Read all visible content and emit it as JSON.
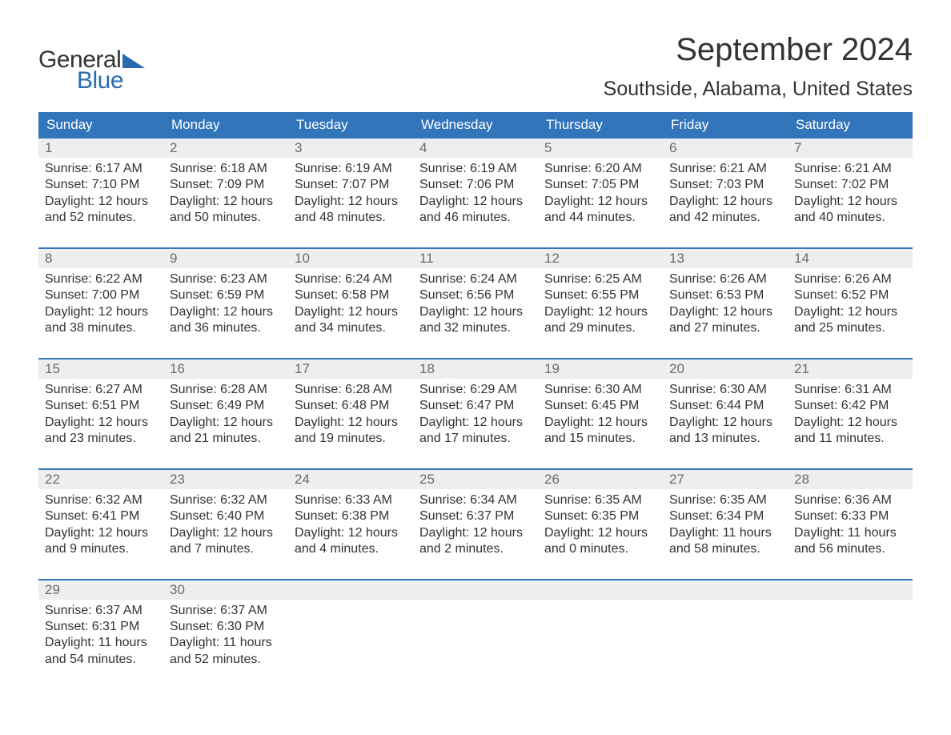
{
  "logo": {
    "text1": "General",
    "text2": "Blue"
  },
  "title": "September 2024",
  "location": "Southside, Alabama, United States",
  "colors": {
    "header_bg": "#3275bb",
    "header_text": "#ffffff",
    "daynum_bg": "#eeeeee",
    "daynum_text": "#6b6b6b",
    "body_text": "#333333",
    "page_bg": "#ffffff",
    "logo_blue": "#2a6bb0"
  },
  "typography": {
    "title_fontsize": 40,
    "location_fontsize": 25,
    "header_fontsize": 17,
    "daynum_fontsize": 17,
    "body_fontsize": 16,
    "logo_fontsize": 30
  },
  "layout": {
    "columns": 7,
    "rows": 5,
    "cell_border_color": "#3275bb"
  },
  "day_headers": [
    "Sunday",
    "Monday",
    "Tuesday",
    "Wednesday",
    "Thursday",
    "Friday",
    "Saturday"
  ],
  "weeks": [
    [
      {
        "n": "1",
        "sunrise": "Sunrise: 6:17 AM",
        "sunset": "Sunset: 7:10 PM",
        "dl1": "Daylight: 12 hours",
        "dl2": "and 52 minutes."
      },
      {
        "n": "2",
        "sunrise": "Sunrise: 6:18 AM",
        "sunset": "Sunset: 7:09 PM",
        "dl1": "Daylight: 12 hours",
        "dl2": "and 50 minutes."
      },
      {
        "n": "3",
        "sunrise": "Sunrise: 6:19 AM",
        "sunset": "Sunset: 7:07 PM",
        "dl1": "Daylight: 12 hours",
        "dl2": "and 48 minutes."
      },
      {
        "n": "4",
        "sunrise": "Sunrise: 6:19 AM",
        "sunset": "Sunset: 7:06 PM",
        "dl1": "Daylight: 12 hours",
        "dl2": "and 46 minutes."
      },
      {
        "n": "5",
        "sunrise": "Sunrise: 6:20 AM",
        "sunset": "Sunset: 7:05 PM",
        "dl1": "Daylight: 12 hours",
        "dl2": "and 44 minutes."
      },
      {
        "n": "6",
        "sunrise": "Sunrise: 6:21 AM",
        "sunset": "Sunset: 7:03 PM",
        "dl1": "Daylight: 12 hours",
        "dl2": "and 42 minutes."
      },
      {
        "n": "7",
        "sunrise": "Sunrise: 6:21 AM",
        "sunset": "Sunset: 7:02 PM",
        "dl1": "Daylight: 12 hours",
        "dl2": "and 40 minutes."
      }
    ],
    [
      {
        "n": "8",
        "sunrise": "Sunrise: 6:22 AM",
        "sunset": "Sunset: 7:00 PM",
        "dl1": "Daylight: 12 hours",
        "dl2": "and 38 minutes."
      },
      {
        "n": "9",
        "sunrise": "Sunrise: 6:23 AM",
        "sunset": "Sunset: 6:59 PM",
        "dl1": "Daylight: 12 hours",
        "dl2": "and 36 minutes."
      },
      {
        "n": "10",
        "sunrise": "Sunrise: 6:24 AM",
        "sunset": "Sunset: 6:58 PM",
        "dl1": "Daylight: 12 hours",
        "dl2": "and 34 minutes."
      },
      {
        "n": "11",
        "sunrise": "Sunrise: 6:24 AM",
        "sunset": "Sunset: 6:56 PM",
        "dl1": "Daylight: 12 hours",
        "dl2": "and 32 minutes."
      },
      {
        "n": "12",
        "sunrise": "Sunrise: 6:25 AM",
        "sunset": "Sunset: 6:55 PM",
        "dl1": "Daylight: 12 hours",
        "dl2": "and 29 minutes."
      },
      {
        "n": "13",
        "sunrise": "Sunrise: 6:26 AM",
        "sunset": "Sunset: 6:53 PM",
        "dl1": "Daylight: 12 hours",
        "dl2": "and 27 minutes."
      },
      {
        "n": "14",
        "sunrise": "Sunrise: 6:26 AM",
        "sunset": "Sunset: 6:52 PM",
        "dl1": "Daylight: 12 hours",
        "dl2": "and 25 minutes."
      }
    ],
    [
      {
        "n": "15",
        "sunrise": "Sunrise: 6:27 AM",
        "sunset": "Sunset: 6:51 PM",
        "dl1": "Daylight: 12 hours",
        "dl2": "and 23 minutes."
      },
      {
        "n": "16",
        "sunrise": "Sunrise: 6:28 AM",
        "sunset": "Sunset: 6:49 PM",
        "dl1": "Daylight: 12 hours",
        "dl2": "and 21 minutes."
      },
      {
        "n": "17",
        "sunrise": "Sunrise: 6:28 AM",
        "sunset": "Sunset: 6:48 PM",
        "dl1": "Daylight: 12 hours",
        "dl2": "and 19 minutes."
      },
      {
        "n": "18",
        "sunrise": "Sunrise: 6:29 AM",
        "sunset": "Sunset: 6:47 PM",
        "dl1": "Daylight: 12 hours",
        "dl2": "and 17 minutes."
      },
      {
        "n": "19",
        "sunrise": "Sunrise: 6:30 AM",
        "sunset": "Sunset: 6:45 PM",
        "dl1": "Daylight: 12 hours",
        "dl2": "and 15 minutes."
      },
      {
        "n": "20",
        "sunrise": "Sunrise: 6:30 AM",
        "sunset": "Sunset: 6:44 PM",
        "dl1": "Daylight: 12 hours",
        "dl2": "and 13 minutes."
      },
      {
        "n": "21",
        "sunrise": "Sunrise: 6:31 AM",
        "sunset": "Sunset: 6:42 PM",
        "dl1": "Daylight: 12 hours",
        "dl2": "and 11 minutes."
      }
    ],
    [
      {
        "n": "22",
        "sunrise": "Sunrise: 6:32 AM",
        "sunset": "Sunset: 6:41 PM",
        "dl1": "Daylight: 12 hours",
        "dl2": "and 9 minutes."
      },
      {
        "n": "23",
        "sunrise": "Sunrise: 6:32 AM",
        "sunset": "Sunset: 6:40 PM",
        "dl1": "Daylight: 12 hours",
        "dl2": "and 7 minutes."
      },
      {
        "n": "24",
        "sunrise": "Sunrise: 6:33 AM",
        "sunset": "Sunset: 6:38 PM",
        "dl1": "Daylight: 12 hours",
        "dl2": "and 4 minutes."
      },
      {
        "n": "25",
        "sunrise": "Sunrise: 6:34 AM",
        "sunset": "Sunset: 6:37 PM",
        "dl1": "Daylight: 12 hours",
        "dl2": "and 2 minutes."
      },
      {
        "n": "26",
        "sunrise": "Sunrise: 6:35 AM",
        "sunset": "Sunset: 6:35 PM",
        "dl1": "Daylight: 12 hours",
        "dl2": "and 0 minutes."
      },
      {
        "n": "27",
        "sunrise": "Sunrise: 6:35 AM",
        "sunset": "Sunset: 6:34 PM",
        "dl1": "Daylight: 11 hours",
        "dl2": "and 58 minutes."
      },
      {
        "n": "28",
        "sunrise": "Sunrise: 6:36 AM",
        "sunset": "Sunset: 6:33 PM",
        "dl1": "Daylight: 11 hours",
        "dl2": "and 56 minutes."
      }
    ],
    [
      {
        "n": "29",
        "sunrise": "Sunrise: 6:37 AM",
        "sunset": "Sunset: 6:31 PM",
        "dl1": "Daylight: 11 hours",
        "dl2": "and 54 minutes."
      },
      {
        "n": "30",
        "sunrise": "Sunrise: 6:37 AM",
        "sunset": "Sunset: 6:30 PM",
        "dl1": "Daylight: 11 hours",
        "dl2": "and 52 minutes."
      },
      {
        "n": "",
        "sunrise": "",
        "sunset": "",
        "dl1": "",
        "dl2": ""
      },
      {
        "n": "",
        "sunrise": "",
        "sunset": "",
        "dl1": "",
        "dl2": ""
      },
      {
        "n": "",
        "sunrise": "",
        "sunset": "",
        "dl1": "",
        "dl2": ""
      },
      {
        "n": "",
        "sunrise": "",
        "sunset": "",
        "dl1": "",
        "dl2": ""
      },
      {
        "n": "",
        "sunrise": "",
        "sunset": "",
        "dl1": "",
        "dl2": ""
      }
    ]
  ]
}
